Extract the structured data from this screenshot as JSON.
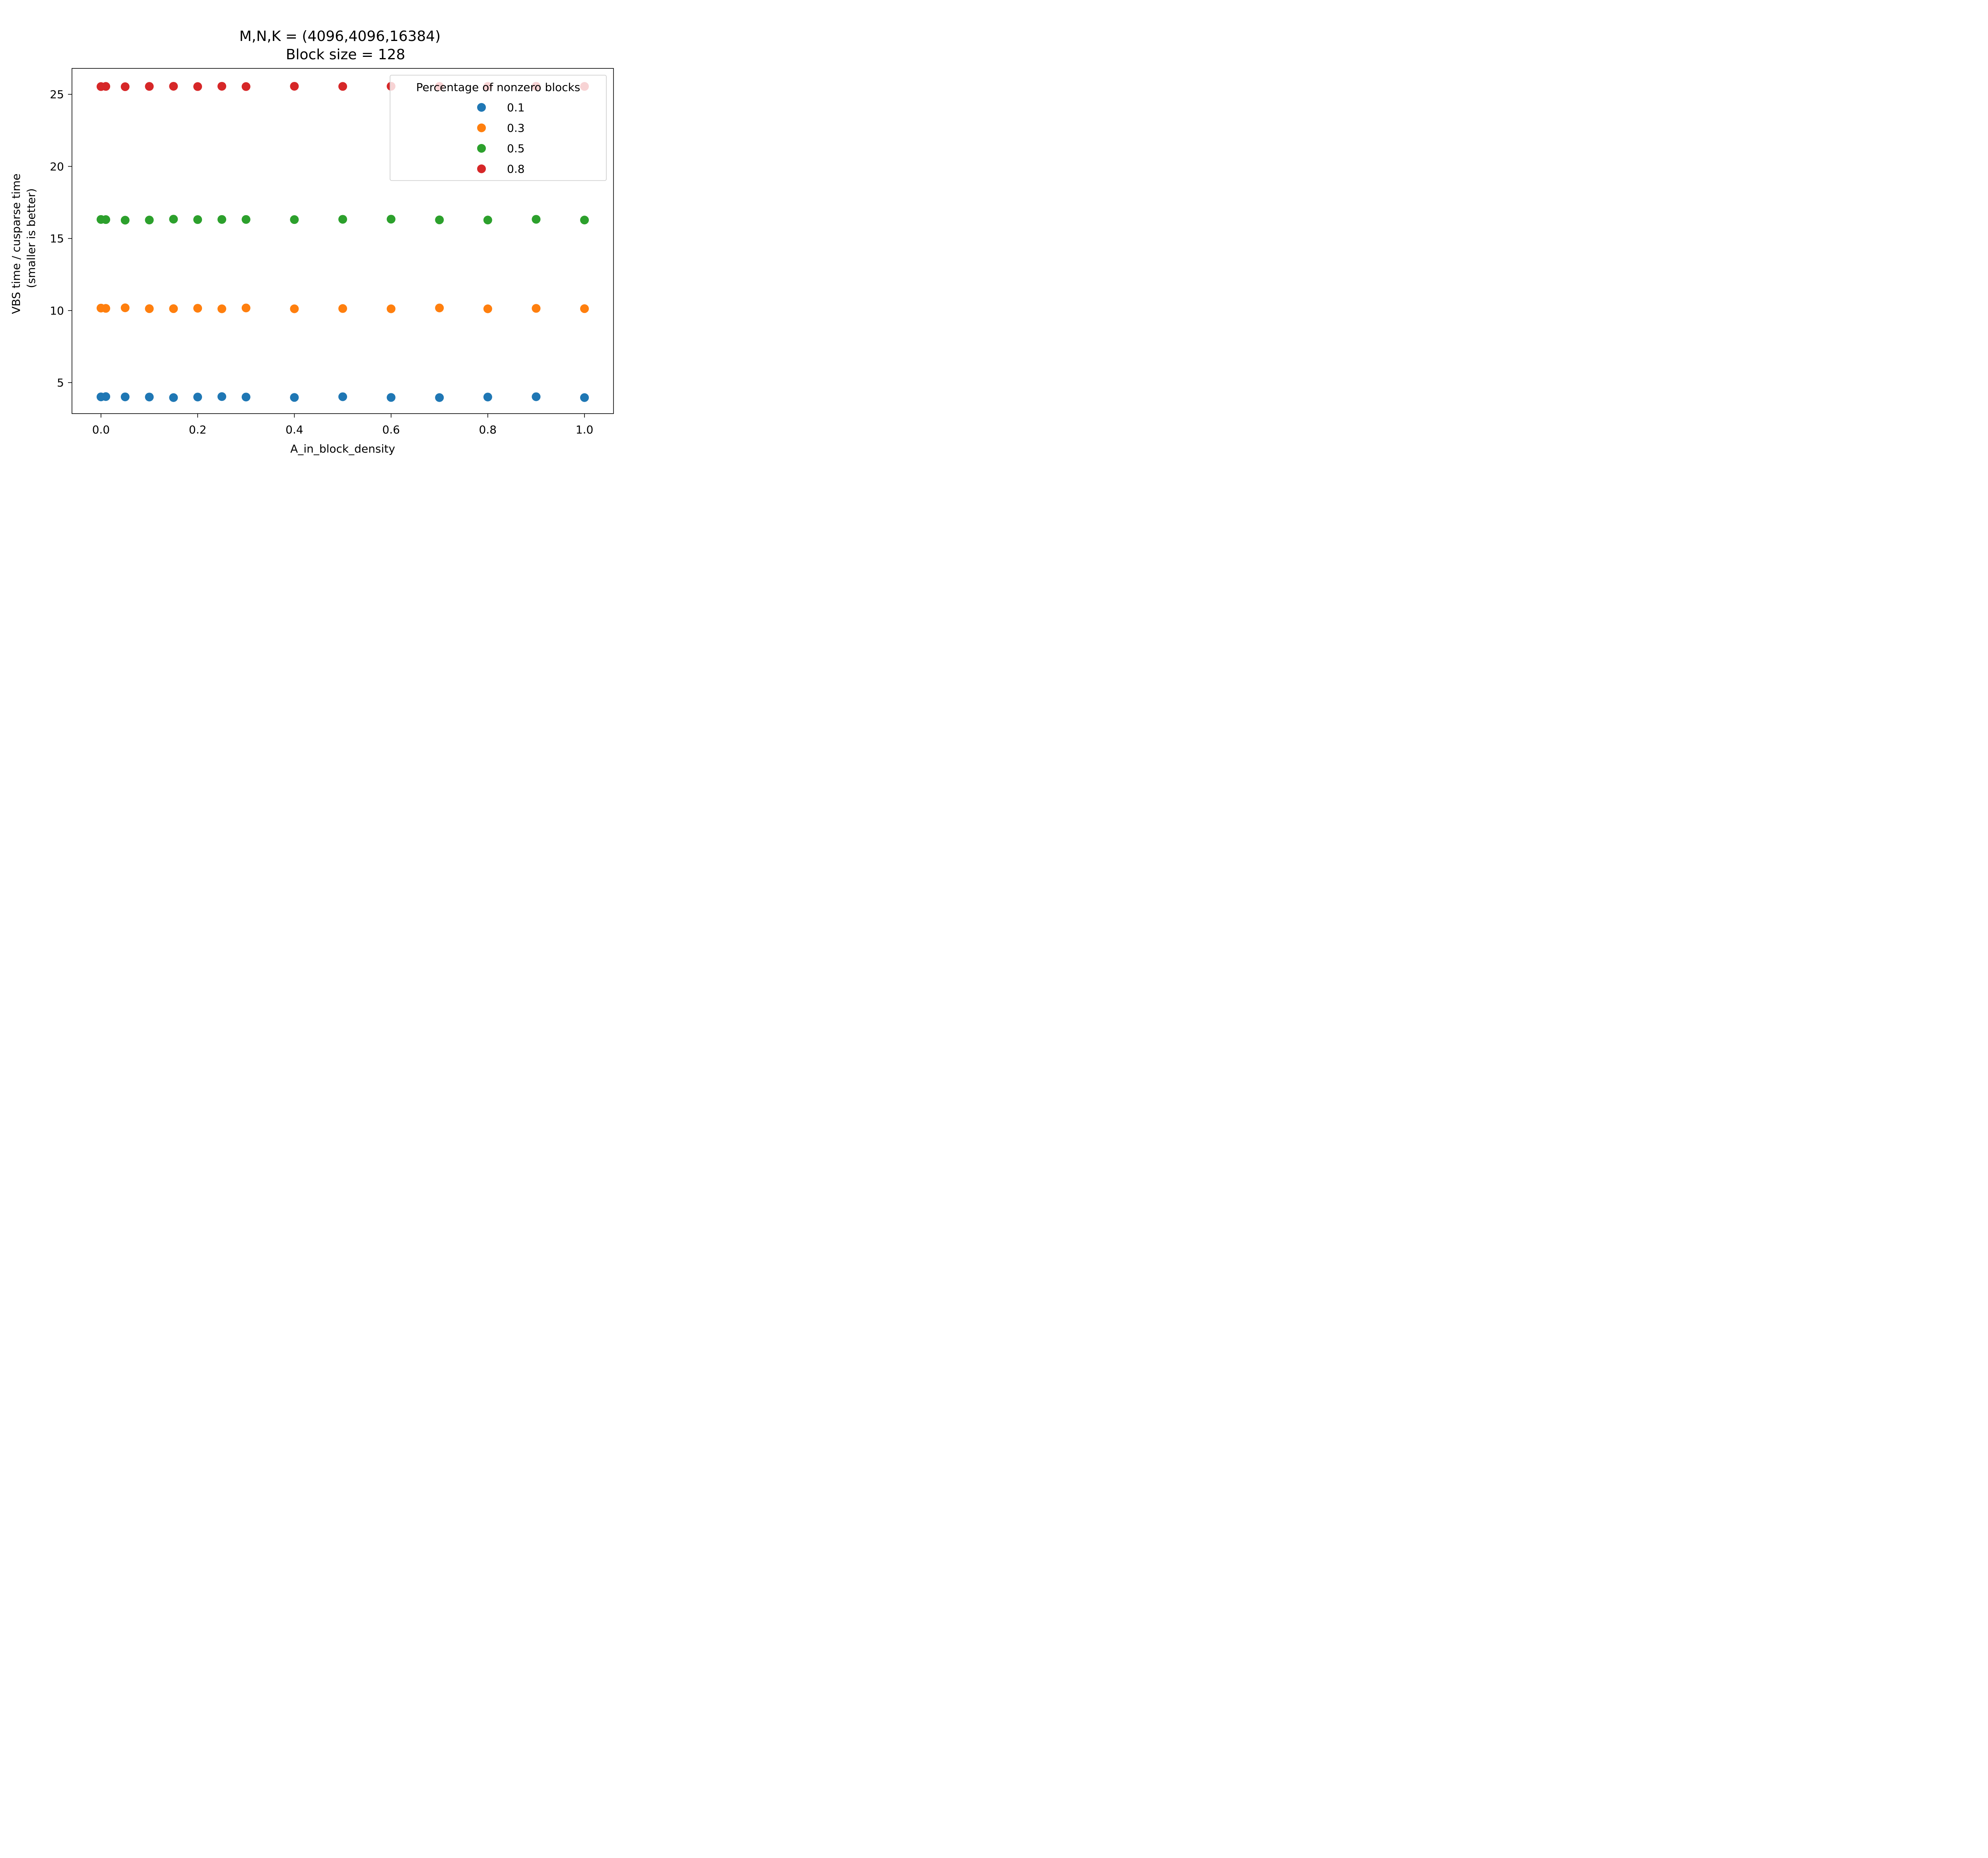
{
  "chart_data": {
    "type": "scatter",
    "title_line1": "M,N,K = (4096,4096,16384)",
    "title_line2": "Block size = 128",
    "xlabel": "A_in_block_density",
    "ylabel_line1": "VBS time / cusparse time",
    "ylabel_line2": "(smaller is better)",
    "xlim": [
      -0.06,
      1.06
    ],
    "ylim": [
      2.85,
      26.8
    ],
    "x_ticks": [
      0.0,
      0.2,
      0.4,
      0.6,
      0.8,
      1.0
    ],
    "x_tick_labels": [
      "0.0",
      "0.2",
      "0.4",
      "0.6",
      "0.8",
      "1.0"
    ],
    "y_ticks": [
      5,
      10,
      15,
      20,
      25
    ],
    "y_tick_labels": [
      "5",
      "10",
      "15",
      "20",
      "25"
    ],
    "legend": {
      "title": "Percentage of nonzero blocks",
      "placement": "top-right"
    },
    "series": [
      {
        "name": "0.1",
        "color": "#1f77b4",
        "x": [
          0.0,
          0.01,
          0.05,
          0.1,
          0.15,
          0.2,
          0.25,
          0.3,
          0.4,
          0.5,
          0.6,
          0.7,
          0.8,
          0.9,
          1.0
        ],
        "y": [
          4.01,
          4.03,
          4.01,
          4.0,
          3.96,
          4.0,
          4.03,
          4.0,
          3.97,
          4.02,
          3.97,
          3.96,
          4.0,
          4.02,
          3.96
        ]
      },
      {
        "name": "0.3",
        "color": "#ff7f0e",
        "x": [
          0.0,
          0.01,
          0.05,
          0.1,
          0.15,
          0.2,
          0.25,
          0.3,
          0.4,
          0.5,
          0.6,
          0.7,
          0.8,
          0.9,
          1.0
        ],
        "y": [
          10.17,
          10.15,
          10.19,
          10.13,
          10.13,
          10.16,
          10.12,
          10.18,
          10.12,
          10.14,
          10.12,
          10.18,
          10.12,
          10.15,
          10.13
        ]
      },
      {
        "name": "0.5",
        "color": "#2ca02c",
        "x": [
          0.0,
          0.01,
          0.05,
          0.1,
          0.15,
          0.2,
          0.25,
          0.3,
          0.4,
          0.5,
          0.6,
          0.7,
          0.8,
          0.9,
          1.0
        ],
        "y": [
          16.32,
          16.31,
          16.27,
          16.28,
          16.34,
          16.31,
          16.32,
          16.32,
          16.31,
          16.33,
          16.34,
          16.29,
          16.28,
          16.33,
          16.28
        ]
      },
      {
        "name": "0.8",
        "color": "#d62728",
        "x": [
          0.0,
          0.01,
          0.05,
          0.1,
          0.15,
          0.2,
          0.25,
          0.3,
          0.4,
          0.5,
          0.6,
          0.7,
          0.8,
          0.9,
          1.0
        ],
        "y": [
          25.54,
          25.55,
          25.53,
          25.55,
          25.56,
          25.54,
          25.56,
          25.54,
          25.56,
          25.55,
          25.56,
          25.55,
          25.55,
          25.56,
          25.55
        ]
      }
    ]
  }
}
